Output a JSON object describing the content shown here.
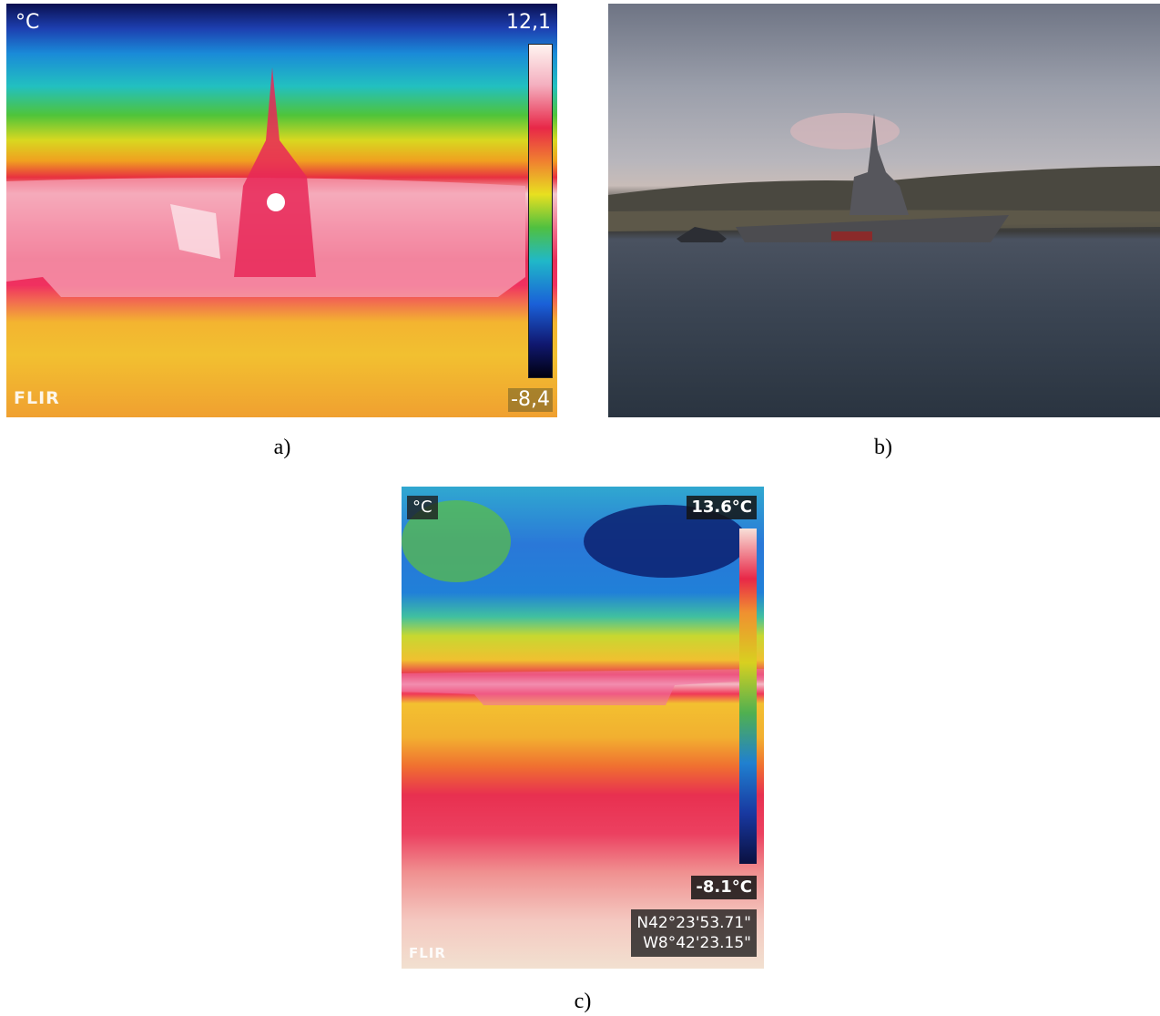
{
  "panels": [
    {
      "label": "a)",
      "unit": "°C",
      "max": "12,1",
      "min": "-8,4",
      "brand": "FLIR"
    },
    {
      "label": "b)"
    },
    {
      "label": "c)",
      "unit": "°C",
      "max": "13.6°C",
      "min": "-8.1°C",
      "coords": [
        "N42°23'53.71\"",
        "W8°42'23.15\""
      ],
      "brand": "FLIR"
    }
  ]
}
